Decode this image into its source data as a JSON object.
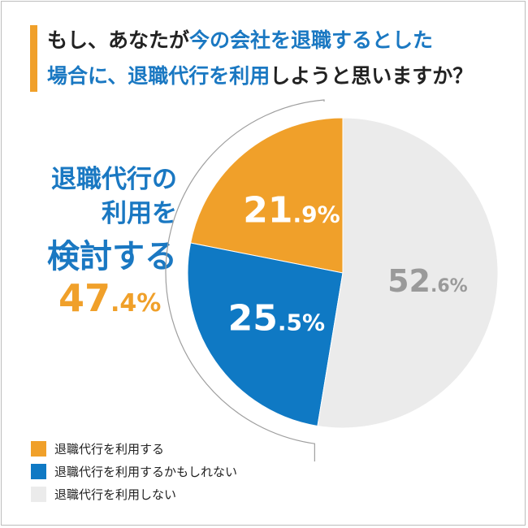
{
  "title": {
    "line1": [
      {
        "text": "もし、あなたが",
        "hl": false
      },
      {
        "text": "今の会社を退職するとした",
        "hl": true
      }
    ],
    "line2": [
      {
        "text": "場合に、",
        "hl": true
      },
      {
        "text": "退職代行を利用",
        "hl": true
      },
      {
        "text": "しようと思いますか？",
        "hl": false
      }
    ]
  },
  "callout": {
    "line1": "退職代行の",
    "line2": "利用を",
    "line3": "検討する",
    "value_int": "47",
    "value_dec": ".4%"
  },
  "colors": {
    "orange": "#f0a02a",
    "blue": "#0f79c4",
    "gray": "#ebebeb",
    "gray_text": "#9a9a9a"
  },
  "chart_data": {
    "type": "pie",
    "title": "もし、あなたが今の会社を退職するとした場合に、退職代行を利用しようと思いますか？",
    "unit": "%",
    "start": "12 o'clock",
    "direction": "counterclockwise",
    "bracket_label": "退職代行の利用を検討する 47.4%",
    "slices": [
      {
        "label": "退職代行を利用する",
        "value": 21.9,
        "int": "21",
        "dec": ".9%",
        "color": "#f0a02a"
      },
      {
        "label": "退職代行を利用するかもしれない",
        "value": 25.5,
        "int": "25",
        "dec": ".5%",
        "color": "#0f79c4"
      },
      {
        "label": "退職代行を利用しない",
        "value": 52.6,
        "int": "52",
        "dec": ".6%",
        "color": "#ebebeb"
      }
    ],
    "legend": [
      "退職代行を利用する",
      "退職代行を利用するかもしれない",
      "退職代行を利用しない"
    ],
    "legend_position": "bottom-left"
  }
}
